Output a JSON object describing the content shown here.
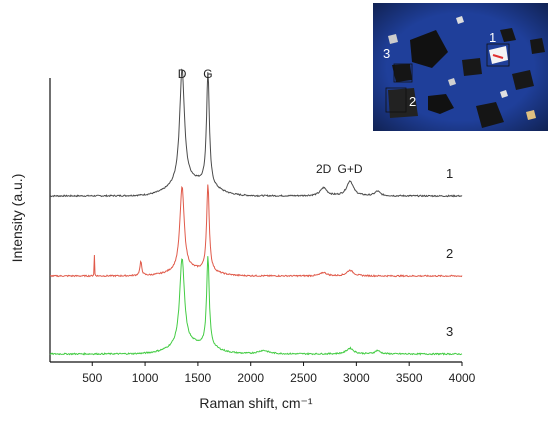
{
  "chart_data": {
    "type": "line",
    "title": "",
    "xlabel": "Raman shift, cm⁻¹",
    "ylabel": "Intensity (a.u.)",
    "xlim": [
      100,
      4000
    ],
    "x_ticks": [
      500,
      1000,
      1500,
      2000,
      2500,
      3000,
      3500,
      4000
    ],
    "y_ticks_shown": false,
    "grid": false,
    "legend": "none",
    "peak_annotations": [
      {
        "label": "D",
        "x": 1350
      },
      {
        "label": "G",
        "x": 1595
      },
      {
        "label": "2D",
        "x": 2690
      },
      {
        "label": "G+D",
        "x": 2940
      }
    ],
    "series": [
      {
        "name": "1",
        "color": "#4a4a4a",
        "offset": 0.0,
        "baseline_x_range": [
          100,
          4000
        ],
        "peaks": [
          {
            "x": 1350,
            "height": 1.0,
            "width": 55
          },
          {
            "x": 1595,
            "height": 0.98,
            "width": 32
          },
          {
            "x": 2690,
            "height": 0.07,
            "width": 75
          },
          {
            "x": 2940,
            "height": 0.13,
            "width": 75
          },
          {
            "x": 3200,
            "height": 0.04,
            "width": 60
          }
        ],
        "broad_background": 0.12
      },
      {
        "name": "2",
        "color": "#e05a4a",
        "offset": -0.5,
        "peaks": [
          {
            "x": 520,
            "height": 0.18,
            "width": 4
          },
          {
            "x": 960,
            "height": 0.12,
            "width": 22
          },
          {
            "x": 1350,
            "height": 0.73,
            "width": 50
          },
          {
            "x": 1595,
            "height": 0.75,
            "width": 30
          },
          {
            "x": 2690,
            "height": 0.03,
            "width": 70
          },
          {
            "x": 2940,
            "height": 0.05,
            "width": 75
          }
        ],
        "broad_background": 0.05
      },
      {
        "name": "3",
        "color": "#44cc44",
        "offset": -1.0,
        "peaks": [
          {
            "x": 1350,
            "height": 0.76,
            "width": 55
          },
          {
            "x": 1595,
            "height": 0.78,
            "width": 30
          },
          {
            "x": 2120,
            "height": 0.03,
            "width": 120
          },
          {
            "x": 2940,
            "height": 0.05,
            "width": 80
          },
          {
            "x": 3200,
            "height": 0.03,
            "width": 60
          }
        ],
        "broad_background": 0.08
      }
    ]
  },
  "inset": {
    "description_labels": [
      "1",
      "2",
      "3"
    ],
    "background_color": "#1f3f9a"
  }
}
